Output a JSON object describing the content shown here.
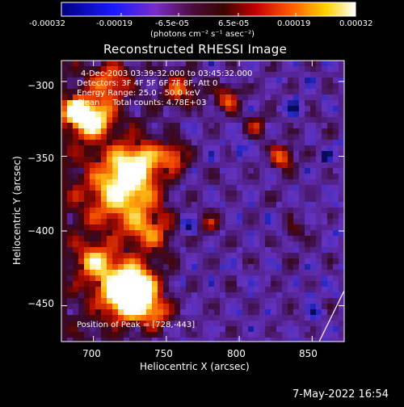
{
  "colorbar": {
    "ticks": [
      "-0.00032",
      "-0.00019",
      "-6.5e-05",
      "6.5e-05",
      "0.00019",
      "0.00032"
    ],
    "tick_values": [
      -0.00032,
      -0.00019,
      -6.5e-05,
      6.5e-05,
      0.00019,
      0.00032
    ],
    "unit_label": "(photons cm⁻² s⁻¹ asec⁻²)"
  },
  "plot": {
    "title": "Reconstructed RHESSI Image",
    "annotations": {
      "time_range": "4-Dec-2003 03:39:32.000 to 03:45:32.000",
      "detectors": "Detectors: 3F 4F 5F 6F 7F 8F, Att 0",
      "energy_range": "Energy Range: 25.0 - 50.0 keV",
      "clean_counts": "Clean     Total counts: 4.78E+03",
      "peak_position": "Position of Peak = [728,-443]"
    }
  },
  "footer": {
    "timestamp": "7-May-2022 16:54"
  },
  "chart_data": {
    "type": "heatmap",
    "title": "Reconstructed RHESSI Image",
    "xlabel": "Heliocentric X (arcsec)",
    "ylabel": "Heliocentric Y (arcsec)",
    "xlim": [
      678,
      872
    ],
    "ylim": [
      -474,
      -286
    ],
    "x_ticks": [
      700,
      750,
      800,
      850
    ],
    "x_tick_labels": [
      "700",
      "750",
      "800",
      "850"
    ],
    "y_ticks": [
      -300,
      -350,
      -400,
      -450
    ],
    "y_tick_labels": [
      "−300",
      "−350",
      "−400",
      "−450"
    ],
    "colorbar_range": [
      -0.00032,
      0.00032
    ],
    "colormap": "blue-purple-red-yellow-white",
    "peak": [
      728,
      -443
    ],
    "bright_regions": [
      {
        "x": 728,
        "y": -443,
        "radius": 14,
        "level": 1.0
      },
      {
        "x": 722,
        "y": -438,
        "radius": 20,
        "level": 0.9
      },
      {
        "x": 718,
        "y": -375,
        "radius": 24,
        "level": 0.85
      },
      {
        "x": 730,
        "y": -355,
        "radius": 18,
        "level": 0.78
      },
      {
        "x": 700,
        "y": -325,
        "radius": 14,
        "level": 0.9
      },
      {
        "x": 688,
        "y": -320,
        "radius": 10,
        "level": 0.75
      },
      {
        "x": 712,
        "y": -300,
        "radius": 12,
        "level": 0.7
      },
      {
        "x": 760,
        "y": -305,
        "radius": 12,
        "level": 0.7
      },
      {
        "x": 755,
        "y": -350,
        "radius": 10,
        "level": 0.72
      },
      {
        "x": 740,
        "y": -400,
        "radius": 14,
        "level": 0.7
      },
      {
        "x": 700,
        "y": -420,
        "radius": 12,
        "level": 0.68
      },
      {
        "x": 830,
        "y": -350,
        "radius": 9,
        "level": 0.78
      },
      {
        "x": 792,
        "y": -312,
        "radius": 9,
        "level": 0.72
      },
      {
        "x": 780,
        "y": -395,
        "radius": 7,
        "level": 0.6
      },
      {
        "x": 745,
        "y": -455,
        "radius": 9,
        "level": 0.62
      },
      {
        "x": 812,
        "y": -330,
        "radius": 7,
        "level": 0.6
      },
      {
        "x": 838,
        "y": -400,
        "radius": 7,
        "level": 0.55
      }
    ],
    "dark_regions": [
      {
        "x": 838,
        "y": -318,
        "radius": 6
      },
      {
        "x": 800,
        "y": -345,
        "radius": 5
      },
      {
        "x": 852,
        "y": -455,
        "radius": 5
      },
      {
        "x": 765,
        "y": -398,
        "radius": 5
      },
      {
        "x": 860,
        "y": -350,
        "radius": 4
      }
    ]
  }
}
